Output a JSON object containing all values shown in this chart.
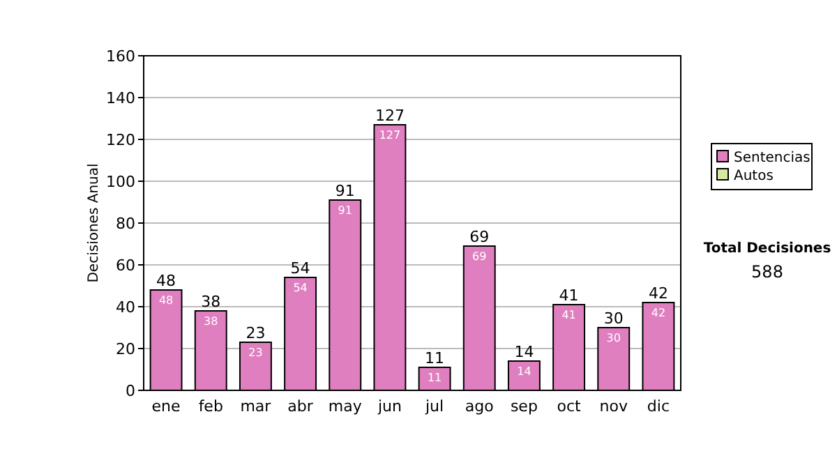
{
  "chart_data": {
    "type": "bar",
    "stacked": true,
    "ylabel": "Decisiones Anual",
    "categories": [
      "ene",
      "feb",
      "mar",
      "abr",
      "may",
      "jun",
      "jul",
      "ago",
      "sep",
      "oct",
      "nov",
      "dic"
    ],
    "series": [
      {
        "name": "Sentencias",
        "color": "#df7fc0",
        "values": [
          48,
          38,
          23,
          54,
          91,
          127,
          11,
          69,
          14,
          41,
          30,
          42
        ],
        "value_labels": [
          "48",
          "38",
          "23",
          "54",
          "91",
          "127",
          "11",
          "69",
          "14",
          "41",
          "30",
          "42"
        ]
      },
      {
        "name": "Autos",
        "color": "#d4e8a0",
        "values": [
          0,
          0,
          0,
          0,
          0,
          0,
          0,
          0,
          0,
          0,
          0,
          0
        ]
      }
    ],
    "totals": [
      "48",
      "38",
      "23",
      "54",
      "91",
      "127",
      "11",
      "69",
      "14",
      "41",
      "30",
      "42"
    ],
    "ylim": [
      0,
      160
    ],
    "yticks": [
      0,
      20,
      40,
      60,
      80,
      100,
      120,
      140,
      160
    ],
    "grid": "y",
    "legend": "right",
    "annotations": [
      "Total Decisiones",
      "588"
    ]
  }
}
